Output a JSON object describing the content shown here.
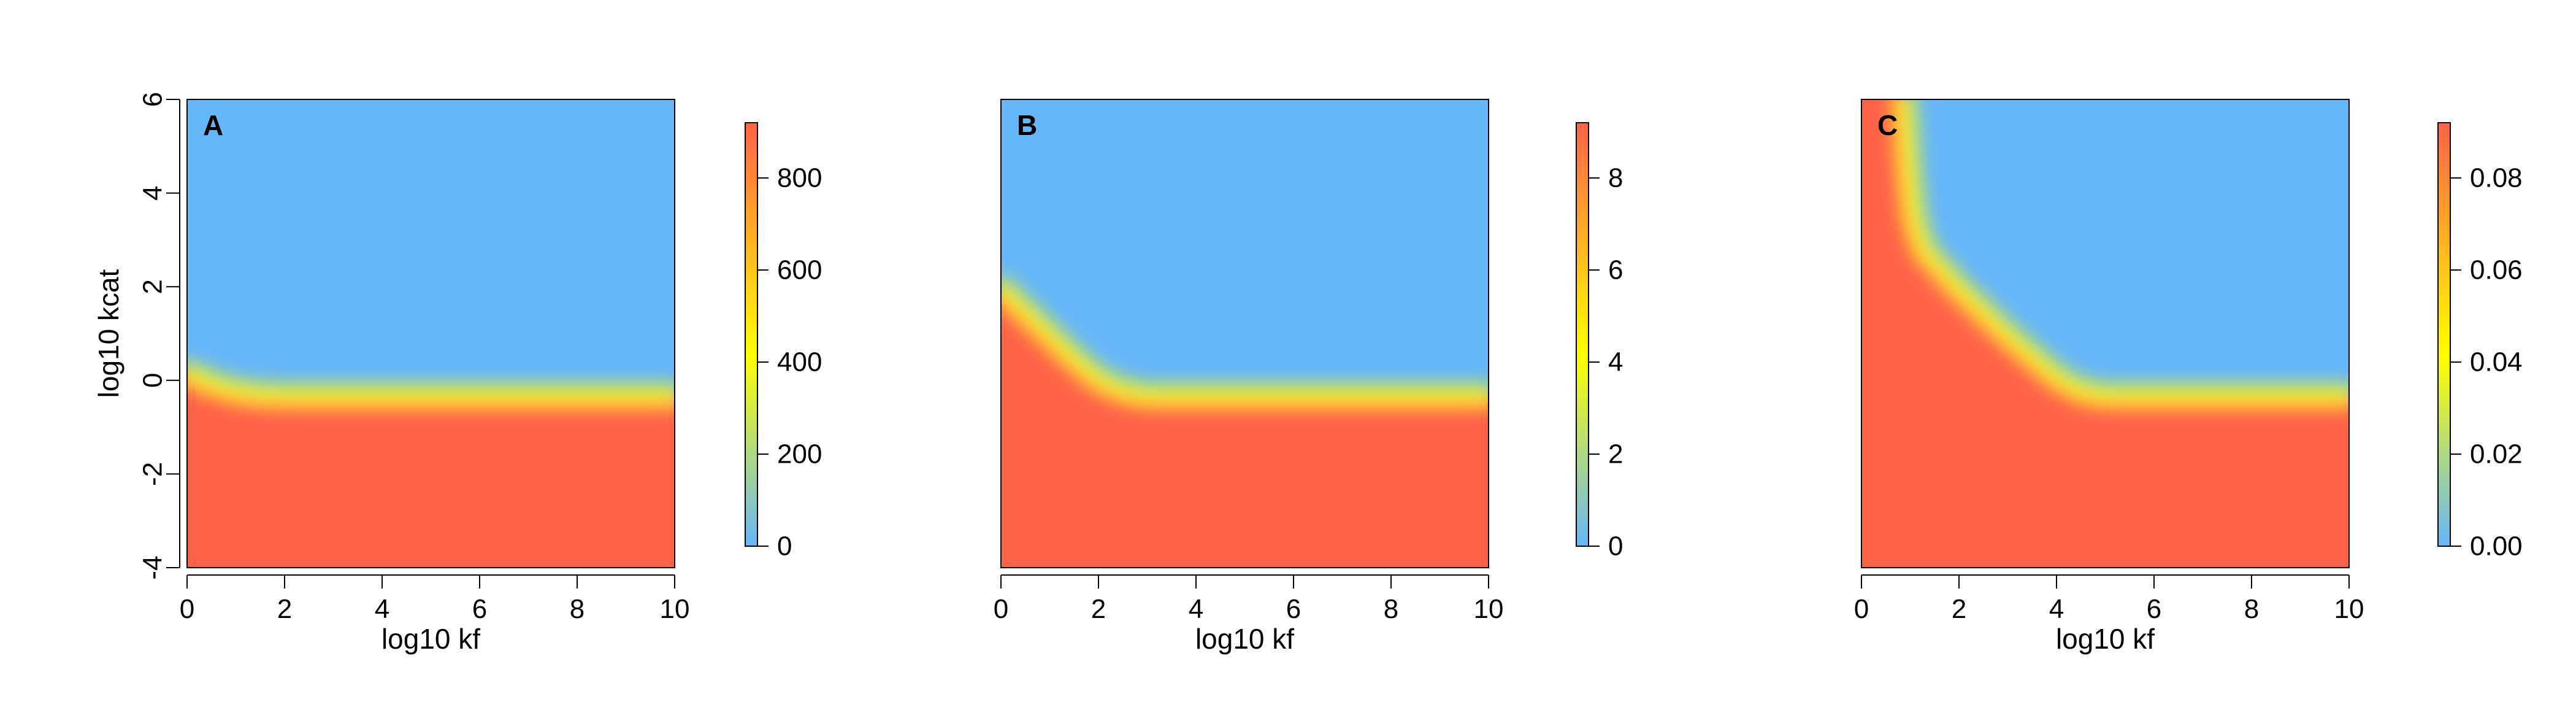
{
  "colors": {
    "low": "#66b6fa",
    "mid": "#ffff00",
    "high": "#ff6347"
  },
  "chart_data": [
    {
      "type": "heatmap",
      "panel_label": "A",
      "xlabel": "log10 kf",
      "ylabel": "log10 kcat",
      "xlim": [
        0,
        10
      ],
      "ylim": [
        -4,
        6
      ],
      "x_ticks": [
        "0",
        "2",
        "4",
        "6",
        "8",
        "10"
      ],
      "y_ticks": [
        "-4",
        "-2",
        "0",
        "2",
        "4",
        "6"
      ],
      "colorbar": {
        "range": [
          0,
          920
        ],
        "ticks": [
          "0",
          "200",
          "400",
          "600",
          "800"
        ],
        "tick_values": [
          0,
          200,
          400,
          600,
          800
        ]
      },
      "boundary": [
        [
          0,
          0.2
        ],
        [
          0.5,
          -0.05
        ],
        [
          1,
          -0.2
        ],
        [
          1.5,
          -0.28
        ],
        [
          2,
          -0.3
        ],
        [
          10,
          -0.3
        ]
      ]
    },
    {
      "type": "heatmap",
      "panel_label": "B",
      "xlabel": "log10 kf",
      "ylabel": "",
      "xlim": [
        0,
        10
      ],
      "ylim": [
        -4,
        6
      ],
      "x_ticks": [
        "0",
        "2",
        "4",
        "6",
        "8",
        "10"
      ],
      "y_ticks": [],
      "colorbar": {
        "range": [
          0,
          9.2
        ],
        "ticks": [
          "0",
          "2",
          "4",
          "6",
          "8"
        ],
        "tick_values": [
          0,
          2,
          4,
          6,
          8
        ]
      },
      "boundary": [
        [
          0,
          2.0
        ],
        [
          0.5,
          1.5
        ],
        [
          1,
          1.0
        ],
        [
          1.5,
          0.5
        ],
        [
          2,
          0.05
        ],
        [
          2.5,
          -0.2
        ],
        [
          3,
          -0.3
        ],
        [
          10,
          -0.3
        ]
      ]
    },
    {
      "type": "heatmap",
      "panel_label": "C",
      "xlabel": "log10 kf",
      "ylabel": "",
      "xlim": [
        0,
        10
      ],
      "ylim": [
        -4,
        6
      ],
      "x_ticks": [
        "0",
        "2",
        "4",
        "6",
        "8",
        "10"
      ],
      "y_ticks": [],
      "colorbar": {
        "range": [
          0,
          0.092
        ],
        "ticks": [
          "0.00",
          "0.02",
          "0.04",
          "0.06",
          "0.08"
        ],
        "tick_values": [
          0,
          0.02,
          0.04,
          0.06,
          0.08
        ]
      },
      "boundary": [
        [
          0.9,
          6
        ],
        [
          1.0,
          4.5
        ],
        [
          1.1,
          3.5
        ],
        [
          1.3,
          2.8
        ],
        [
          2,
          2.0
        ],
        [
          3,
          1.0
        ],
        [
          4,
          0.1
        ],
        [
          4.5,
          -0.2
        ],
        [
          5,
          -0.3
        ],
        [
          10,
          -0.3
        ]
      ]
    }
  ]
}
